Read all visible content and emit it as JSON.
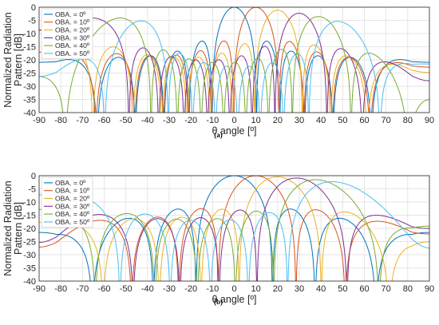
{
  "chart_data": [
    {
      "type": "line",
      "caption": "(a)",
      "xlabel": "θ angle [º]",
      "ylabel": "Normalized Radiation Pattern [dB]",
      "xlim": [
        -90,
        90
      ],
      "ylim": [
        -40,
        0
      ],
      "xticks": [
        "-90",
        "-80",
        "-70",
        "-60",
        "-50",
        "-40",
        "-30",
        "-20",
        "-10",
        "0",
        "10",
        "20",
        "30",
        "40",
        "50",
        "60",
        "70",
        "80",
        "90"
      ],
      "yticks": [
        "0",
        "-5",
        "-10",
        "-15",
        "-20",
        "-25",
        "-30",
        "-35",
        "-40"
      ],
      "grid": true,
      "legend": "top-left",
      "series": [
        {
          "name": "OBA. = 0º",
          "color": "#0072BD",
          "kind": "narrow",
          "peak": 0,
          "peak_db": 0
        },
        {
          "name": "OBA. = 10º",
          "color": "#D95319",
          "kind": "narrow",
          "peak": 10,
          "peak_db": 0
        },
        {
          "name": "OBA. = 20º",
          "color": "#EDB120",
          "kind": "narrow",
          "peak": 20,
          "peak_db": -1
        },
        {
          "name": "OBA. = 30º",
          "color": "#7E2F8E",
          "kind": "narrow",
          "peak": 30,
          "peak_db": -2
        },
        {
          "name": "OBA. = 40º",
          "color": "#77AC30",
          "kind": "narrow",
          "peak": 39,
          "peak_db": -3
        },
        {
          "name": "OBA. = 50º",
          "color": "#4DBEEE",
          "kind": "narrow",
          "peak": 48,
          "peak_db": -4.5
        }
      ]
    },
    {
      "type": "line",
      "caption": "(b)",
      "xlabel": "θ angle [º]",
      "ylabel": "Normalized Radiation Pattern [dB]",
      "xlim": [
        -90,
        90
      ],
      "ylim": [
        -40,
        0
      ],
      "xticks": [
        "-90",
        "-80",
        "-70",
        "-60",
        "-50",
        "-40",
        "-30",
        "-20",
        "-10",
        "0",
        "10",
        "20",
        "30",
        "40",
        "50",
        "60",
        "70",
        "80",
        "90"
      ],
      "yticks": [
        "0",
        "-5",
        "-10",
        "-15",
        "-20",
        "-25",
        "-30",
        "-35",
        "-40"
      ],
      "grid": true,
      "legend": "top-left",
      "series": [
        {
          "name": "OBA. = 0º",
          "color": "#0072BD",
          "kind": "wide",
          "peak": 0,
          "peak_db": 0
        },
        {
          "name": "OBA. = 10º",
          "color": "#D95319",
          "kind": "wide",
          "peak": 10,
          "peak_db": 0
        },
        {
          "name": "OBA. = 20º",
          "color": "#EDB120",
          "kind": "wide",
          "peak": 20,
          "peak_db": -0.3
        },
        {
          "name": "OBA. = 30º",
          "color": "#7E2F8E",
          "kind": "wide",
          "peak": 29,
          "peak_db": -0.6
        },
        {
          "name": "OBA. = 40º",
          "color": "#77AC30",
          "kind": "wide",
          "peak": 38,
          "peak_db": -1
        },
        {
          "name": "OBA. = 50º",
          "color": "#4DBEEE",
          "kind": "wide",
          "peak": 46,
          "peak_db": -1.5
        }
      ]
    }
  ]
}
